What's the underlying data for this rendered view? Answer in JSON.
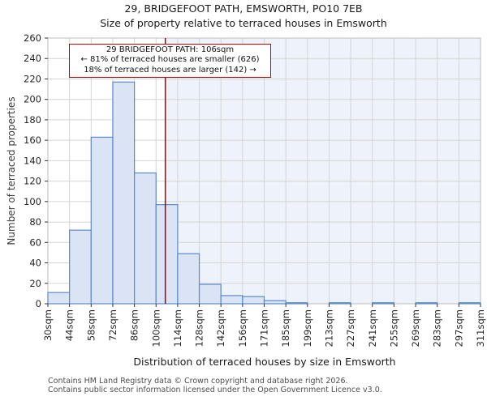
{
  "title": "29, BRIDGEFOOT PATH, EMSWORTH, PO10 7EB",
  "subtitle": "Size of property relative to terraced houses in Emsworth",
  "annotation": {
    "line1": "29 BRIDGEFOOT PATH: 106sqm",
    "line2": "← 81% of terraced houses are smaller (626)",
    "line3": "18% of terraced houses are larger (142) →"
  },
  "footer": {
    "line1": "Contains HM Land Registry data © Crown copyright and database right 2026.",
    "line2": "Contains public sector information licensed under the Open Government Licence v3.0."
  },
  "colors": {
    "bar_fill": "#dbe4f4",
    "bar_stroke": "#5b8ac8",
    "marker_line": "#aa0000",
    "annotation_border": "#cc0000",
    "shade": "#eef3fb",
    "grid": "#d4d4d4",
    "border": "#bdbdbd",
    "tick": "#333333",
    "text": "#262626"
  },
  "chart_data": {
    "type": "bar",
    "title": "29, BRIDGEFOOT PATH, EMSWORTH, PO10 7EB",
    "subtitle": "Size of property relative to terraced houses in Emsworth",
    "xlabel": "Distribution of terraced houses by size in Emsworth",
    "ylabel": "Number of terraced properties",
    "ylim": [
      0,
      260
    ],
    "ytick_step": 20,
    "grid": true,
    "legend": false,
    "bin_edges_sqm": [
      30,
      44,
      58,
      72,
      86,
      100,
      114,
      128,
      142,
      156,
      171,
      185,
      199,
      213,
      227,
      241,
      255,
      269,
      283,
      297,
      311
    ],
    "xtick_labels": [
      "30sqm",
      "44sqm",
      "58sqm",
      "72sqm",
      "86sqm",
      "100sqm",
      "114sqm",
      "128sqm",
      "142sqm",
      "156sqm",
      "171sqm",
      "185sqm",
      "199sqm",
      "213sqm",
      "227sqm",
      "241sqm",
      "255sqm",
      "269sqm",
      "283sqm",
      "297sqm",
      "311sqm"
    ],
    "values": [
      11,
      72,
      163,
      217,
      128,
      97,
      49,
      19,
      8,
      7,
      3,
      1,
      0,
      1,
      0,
      1,
      0,
      1,
      0,
      1
    ],
    "marker": {
      "value_sqm": 106,
      "smaller_pct": 81,
      "smaller_count": 626,
      "larger_pct": 18,
      "larger_count": 142
    }
  }
}
